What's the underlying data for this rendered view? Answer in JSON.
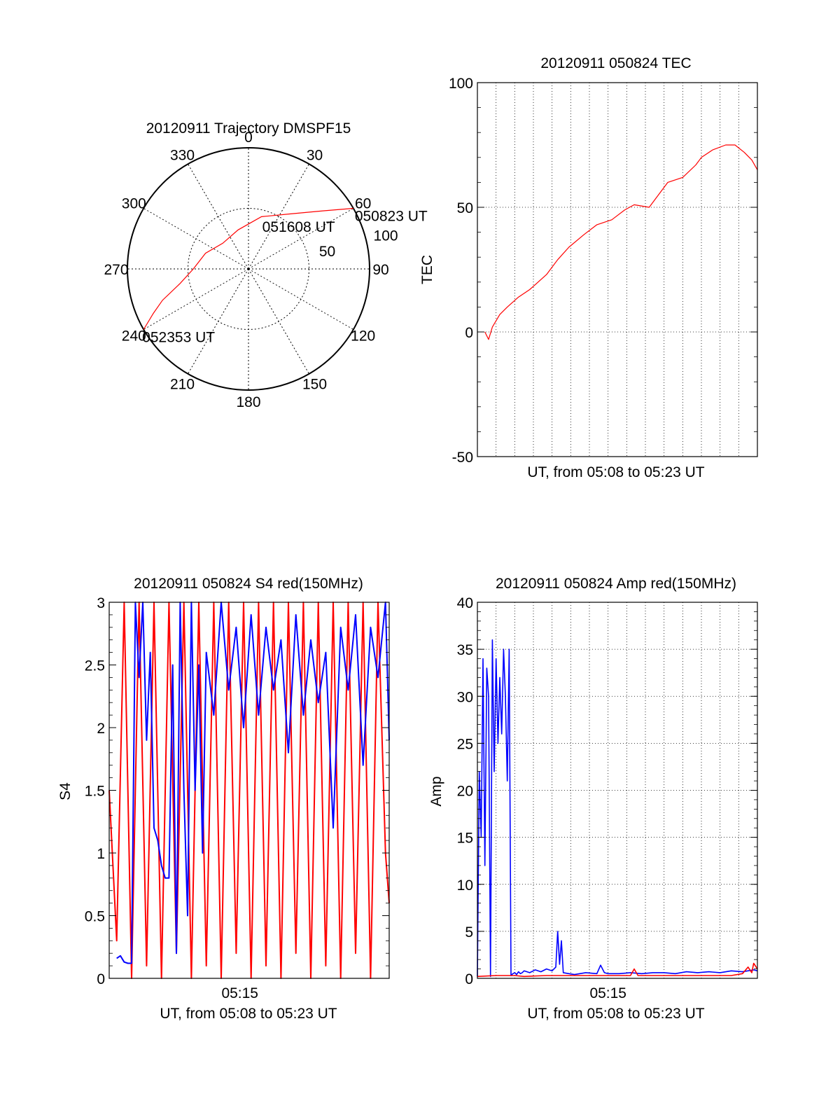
{
  "chart_data": [
    {
      "type": "polar",
      "title": "20120911 Trajectory DMSPF15",
      "angle_labels": [
        "0",
        "30",
        "60",
        "90",
        "120",
        "150",
        "180",
        "210",
        "240",
        "270",
        "300",
        "330"
      ],
      "radial_labels": [
        "50",
        "100"
      ],
      "rlim": [
        0,
        100
      ],
      "grid": true,
      "series": [
        {
          "color": "#ff0000",
          "points": [
            {
              "az": 60,
              "el": 0
            },
            {
              "az": 52,
              "el": 20
            },
            {
              "az": 38,
              "el": 38
            },
            {
              "az": 14,
              "el": 50
            },
            {
              "az": 345,
              "el": 60
            },
            {
              "az": 315,
              "el": 63
            },
            {
              "az": 290,
              "el": 56
            },
            {
              "az": 270,
              "el": 49
            },
            {
              "az": 258,
              "el": 38
            },
            {
              "az": 250,
              "el": 22
            },
            {
              "az": 245,
              "el": 12
            },
            {
              "az": 240,
              "el": 0
            }
          ]
        }
      ],
      "annotations": [
        {
          "text": "050823 UT",
          "az": 60,
          "el": 0
        },
        {
          "text": "051608 UT",
          "az": 14,
          "el": 52
        },
        {
          "text": "052353 UT",
          "az": 240,
          "el": 0
        }
      ]
    },
    {
      "type": "line",
      "title": "20120911 050824 TEC",
      "xlabel": "UT, from 05:08 to 05:23 UT",
      "ylabel": "TEC",
      "xlim": [
        5.1333,
        5.3833
      ],
      "ylim": [
        -50,
        100
      ],
      "yticks": [
        "-50",
        "0",
        "50",
        "100"
      ],
      "grid": true,
      "series": [
        {
          "color": "#ff0000",
          "x": [
            5.14,
            5.1433,
            5.1467,
            5.1533,
            5.16,
            5.17,
            5.18,
            5.195,
            5.205,
            5.215,
            5.2283,
            5.24,
            5.2533,
            5.265,
            5.2733,
            5.2867,
            5.3033,
            5.3167,
            5.3283,
            5.3333,
            5.3433,
            5.355,
            5.3633,
            5.3717,
            5.3783,
            5.3833
          ],
          "y": [
            0,
            -3,
            2,
            7,
            10,
            14,
            17,
            23,
            29,
            34,
            39,
            43,
            45,
            49,
            51,
            50,
            60,
            62,
            67,
            70,
            73,
            75,
            75,
            72,
            69,
            65
          ]
        }
      ]
    },
    {
      "type": "line",
      "title": "20120911 050824 S4 red(150MHz)",
      "xlabel": "UT, from 05:08 to 05:23 UT",
      "ylabel": "S4",
      "xlim": [
        5.1333,
        5.3833
      ],
      "ylim": [
        0,
        3
      ],
      "xticks": [
        "05:15"
      ],
      "yticks": [
        "0",
        "0.5",
        "1",
        "1.5",
        "2",
        "2.5",
        "3"
      ],
      "grid": false,
      "series": [
        {
          "color": "#ff0000",
          "x": [
            5.1333,
            5.14,
            5.1467,
            5.1533,
            5.16,
            5.1667,
            5.1733,
            5.18,
            5.1867,
            5.1933,
            5.2,
            5.2067,
            5.2133,
            5.22,
            5.2267,
            5.2333,
            5.24,
            5.2467,
            5.2533,
            5.26,
            5.2667,
            5.2733,
            5.28,
            5.2867,
            5.2933,
            5.3,
            5.3067,
            5.3133,
            5.32,
            5.3267,
            5.3333,
            5.34,
            5.3467,
            5.3533,
            5.36,
            5.3667,
            5.3733,
            5.38,
            5.3833
          ],
          "y": [
            1.5,
            0.3,
            3.0,
            0.0,
            3.0,
            0.1,
            3.0,
            0.0,
            3.0,
            0.2,
            3.0,
            0.0,
            3.0,
            0.1,
            3.0,
            0.0,
            3.0,
            0.2,
            3.0,
            0.0,
            3.0,
            0.1,
            3.0,
            0.0,
            3.0,
            0.2,
            3.0,
            0.0,
            3.0,
            0.1,
            3.0,
            0.0,
            3.0,
            0.2,
            3.0,
            0.0,
            3.0,
            1.0,
            0.6
          ]
        },
        {
          "color": "#0000ff",
          "x": [
            5.14,
            5.1433,
            5.1467,
            5.15,
            5.1533,
            5.1567,
            5.16,
            5.1633,
            5.1667,
            5.17,
            5.1733,
            5.1767,
            5.18,
            5.1833,
            5.1867,
            5.19,
            5.1933,
            5.1967,
            5.2,
            5.2033,
            5.2067,
            5.21,
            5.2133,
            5.2167,
            5.22,
            5.2267,
            5.2333,
            5.24,
            5.2467,
            5.2533,
            5.26,
            5.2667,
            5.2733,
            5.28,
            5.2867,
            5.2933,
            5.3,
            5.3067,
            5.3133,
            5.32,
            5.3267,
            5.3333,
            5.34,
            5.3467,
            5.3533,
            5.36,
            5.3667,
            5.3733,
            5.38,
            5.3833
          ],
          "y": [
            0.16,
            0.18,
            0.13,
            0.12,
            0.12,
            3.0,
            2.4,
            3.0,
            1.9,
            2.6,
            1.2,
            1.1,
            0.9,
            0.8,
            0.8,
            2.5,
            0.2,
            3.0,
            1.5,
            0.5,
            3.0,
            1.5,
            2.5,
            1.0,
            2.6,
            2.1,
            3.0,
            2.3,
            2.8,
            2.0,
            2.9,
            2.1,
            2.8,
            2.3,
            2.7,
            1.8,
            2.9,
            2.1,
            2.7,
            2.2,
            2.6,
            1.2,
            2.8,
            2.3,
            2.9,
            1.7,
            2.8,
            2.4,
            3.0,
            1.9
          ]
        }
      ]
    },
    {
      "type": "line",
      "title": "20120911 050824 Amp red(150MHz)",
      "xlabel": "UT, from 05:08 to 05:23 UT",
      "ylabel": "Amp",
      "xlim": [
        5.1333,
        5.3833
      ],
      "ylim": [
        0,
        40
      ],
      "xticks": [
        "05:15"
      ],
      "yticks": [
        "0",
        "5",
        "10",
        "15",
        "20",
        "25",
        "30",
        "35",
        "40"
      ],
      "grid": true,
      "series": [
        {
          "color": "#0000ff",
          "x": [
            5.1333,
            5.135,
            5.1367,
            5.1383,
            5.14,
            5.1417,
            5.1433,
            5.145,
            5.1467,
            5.1483,
            5.15,
            5.1517,
            5.1533,
            5.155,
            5.1567,
            5.1583,
            5.16,
            5.1617,
            5.1633,
            5.165,
            5.1667,
            5.1683,
            5.17,
            5.1717,
            5.1733,
            5.175,
            5.18,
            5.185,
            5.19,
            5.195,
            5.2,
            5.2033,
            5.205,
            5.2067,
            5.2083,
            5.21,
            5.215,
            5.22,
            5.23,
            5.24,
            5.2433,
            5.2467,
            5.25,
            5.26,
            5.27,
            5.28,
            5.29,
            5.3,
            5.31,
            5.32,
            5.33,
            5.34,
            5.35,
            5.36,
            5.37,
            5.38,
            5.3833
          ],
          "y": [
            0.2,
            22,
            15,
            34,
            12,
            33,
            30,
            0.2,
            36,
            22,
            34,
            25,
            32,
            26,
            35,
            30,
            21,
            35,
            0.3,
            0.5,
            0.6,
            0.4,
            0.7,
            0.5,
            0.6,
            0.8,
            0.6,
            0.9,
            0.7,
            1.0,
            0.8,
            1.2,
            5.0,
            1.5,
            4.0,
            0.6,
            0.5,
            0.4,
            0.6,
            0.5,
            1.4,
            0.6,
            0.5,
            0.5,
            0.6,
            0.5,
            0.6,
            0.6,
            0.5,
            0.7,
            0.6,
            0.7,
            0.6,
            0.8,
            0.7,
            0.9,
            0.8
          ]
        },
        {
          "color": "#ff0000",
          "x": [
            5.1333,
            5.15,
            5.1667,
            5.175,
            5.195,
            5.2,
            5.205,
            5.22,
            5.24,
            5.27,
            5.2733,
            5.2767,
            5.3,
            5.33,
            5.36,
            5.37,
            5.375,
            5.3783,
            5.38,
            5.3833
          ],
          "y": [
            0.2,
            0.3,
            0.3,
            0.2,
            0.3,
            0.3,
            0.3,
            0.3,
            0.3,
            0.3,
            1.0,
            0.3,
            0.3,
            0.3,
            0.3,
            0.5,
            1.2,
            0.6,
            1.6,
            1.0
          ]
        }
      ]
    }
  ]
}
